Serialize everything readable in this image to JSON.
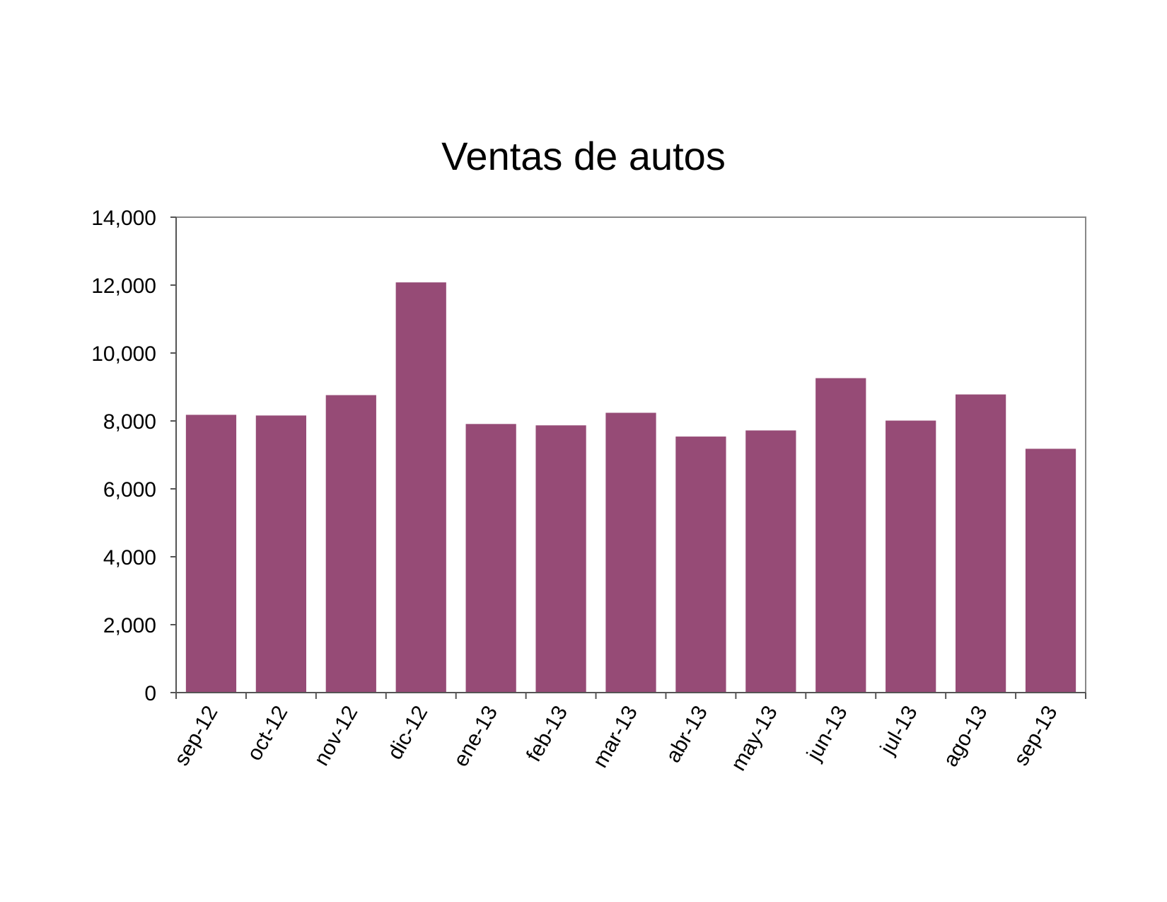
{
  "chart_data": {
    "type": "bar",
    "title": "Ventas de autos",
    "xlabel": "",
    "ylabel": "",
    "categories": [
      "sep-12",
      "oct-12",
      "nov-12",
      "dic-12",
      "ene-13",
      "feb-13",
      "mar-13",
      "abr-13",
      "may-13",
      "jun-13",
      "jul-13",
      "ago-13",
      "sep-13"
    ],
    "values": [
      8180,
      8160,
      8760,
      12080,
      7910,
      7870,
      8240,
      7540,
      7720,
      9260,
      8010,
      8780,
      7180
    ],
    "ylim": [
      0,
      14000
    ],
    "yticks": [
      0,
      2000,
      4000,
      6000,
      8000,
      10000,
      12000,
      14000
    ],
    "ytick_labels": [
      "0",
      "2,000",
      "4,000",
      "6,000",
      "8,000",
      "10,000",
      "12,000",
      "14,000"
    ],
    "grid": false,
    "legend": "none",
    "bar_color": "#964B76",
    "axis_color": "#888888"
  }
}
